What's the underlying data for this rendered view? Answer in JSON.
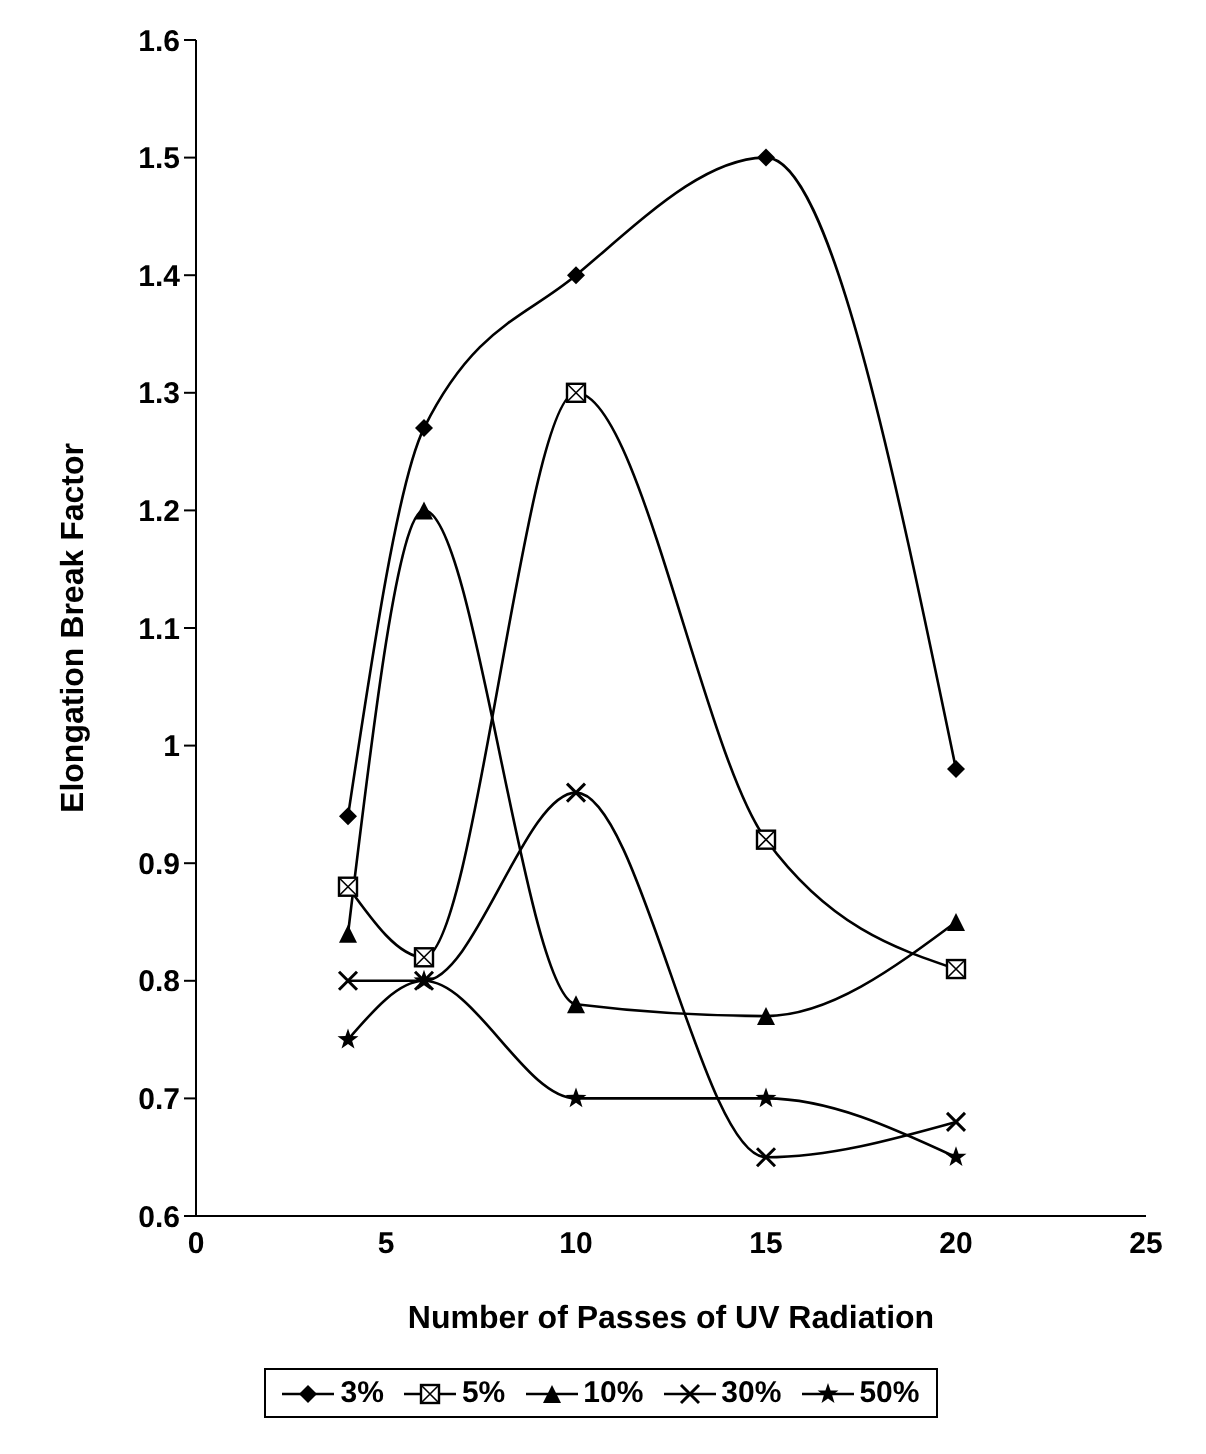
{
  "chart_data": {
    "type": "line",
    "xlabel": "Number of Passes of UV Radiation",
    "ylabel": "Elongation Break Factor",
    "x": [
      4,
      6,
      10,
      15,
      20
    ],
    "series": [
      {
        "name": "3%",
        "color": "#000000",
        "marker": "diamond",
        "values": [
          0.94,
          1.27,
          1.4,
          1.5,
          0.98
        ]
      },
      {
        "name": "5%",
        "color": "#000000",
        "marker": "square",
        "values": [
          0.88,
          0.82,
          1.3,
          0.92,
          0.81
        ]
      },
      {
        "name": "10%",
        "color": "#000000",
        "marker": "triangle",
        "values": [
          0.84,
          1.2,
          0.78,
          0.77,
          0.85
        ]
      },
      {
        "name": "30%",
        "color": "#000000",
        "marker": "cross",
        "values": [
          0.8,
          0.8,
          0.96,
          0.65,
          0.68
        ]
      },
      {
        "name": "50%",
        "color": "#000000",
        "marker": "star",
        "values": [
          0.75,
          0.8,
          0.7,
          0.7,
          0.65
        ]
      }
    ],
    "xlim": [
      0,
      25
    ],
    "xticks": [
      0,
      5,
      10,
      15,
      20,
      25
    ],
    "ylim": [
      0.6,
      1.6
    ],
    "yticks": [
      0.6,
      0.7,
      0.8,
      0.9,
      1,
      1.1,
      1.2,
      1.3,
      1.4,
      1.5,
      1.6
    ],
    "grid": false,
    "legend": "bottom",
    "line_style": "solid"
  }
}
